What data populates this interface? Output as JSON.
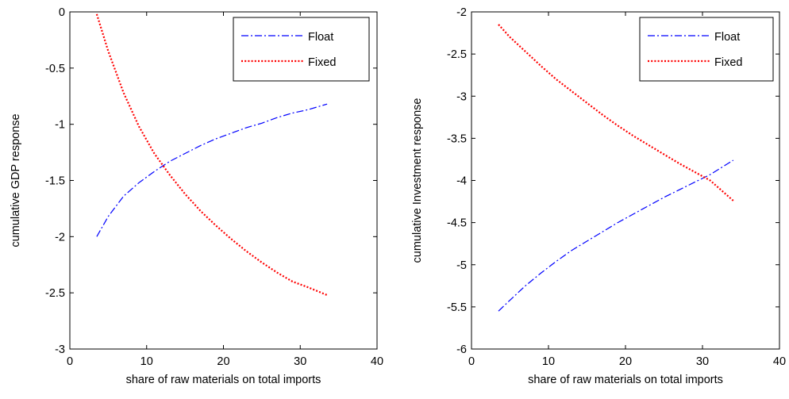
{
  "chart_data": [
    {
      "type": "line",
      "title": "",
      "xlabel": "share of raw materials on total imports",
      "ylabel": "cumulative GDP response",
      "xlim": [
        0,
        40
      ],
      "ylim": [
        -3,
        0
      ],
      "xticks": [
        0,
        10,
        20,
        30,
        40
      ],
      "yticks": [
        0,
        -0.5,
        -1,
        -1.5,
        -2,
        -2.5,
        -3
      ],
      "xtick_labels": [
        "0",
        "10",
        "20",
        "30",
        "40"
      ],
      "ytick_labels": [
        "0",
        "-0.5",
        "-1",
        "-1.5",
        "-2",
        "-2.5",
        "-3"
      ],
      "grid": false,
      "legend_position": "top-right",
      "series": [
        {
          "name": "Float",
          "color": "#0000ff",
          "style": "dashdot",
          "x": [
            3.5,
            5,
            7,
            9,
            11,
            13,
            15,
            17,
            19,
            21,
            23,
            25,
            27,
            29,
            31,
            33.5
          ],
          "y": [
            -2.0,
            -1.82,
            -1.64,
            -1.52,
            -1.42,
            -1.33,
            -1.26,
            -1.19,
            -1.13,
            -1.08,
            -1.03,
            -0.99,
            -0.94,
            -0.9,
            -0.87,
            -0.82
          ]
        },
        {
          "name": "Fixed",
          "color": "#ff0000",
          "style": "dotted",
          "x": [
            3.5,
            5,
            7,
            9,
            11,
            13,
            15,
            17,
            19,
            21,
            23,
            25,
            27,
            29,
            31,
            33.5
          ],
          "y": [
            -0.02,
            -0.35,
            -0.72,
            -1.02,
            -1.26,
            -1.45,
            -1.62,
            -1.77,
            -1.9,
            -2.02,
            -2.13,
            -2.23,
            -2.32,
            -2.4,
            -2.45,
            -2.52
          ]
        }
      ]
    },
    {
      "type": "line",
      "title": "",
      "xlabel": "share of raw materials on total imports",
      "ylabel": "cumulative Investment response",
      "xlim": [
        0,
        40
      ],
      "ylim": [
        -6,
        -2
      ],
      "xticks": [
        0,
        10,
        20,
        30,
        40
      ],
      "yticks": [
        -2,
        -2.5,
        -3,
        -3.5,
        -4,
        -4.5,
        -5,
        -5.5,
        -6
      ],
      "xtick_labels": [
        "0",
        "10",
        "20",
        "30",
        "40"
      ],
      "ytick_labels": [
        "-2",
        "-2.5",
        "-3",
        "-3.5",
        "-4",
        "-4.5",
        "-5",
        "-5.5",
        "-6"
      ],
      "grid": false,
      "legend_position": "top-right",
      "series": [
        {
          "name": "Float",
          "color": "#0000ff",
          "style": "dashdot",
          "x": [
            3.5,
            5,
            7,
            9,
            11,
            13,
            15,
            17,
            19,
            21,
            23,
            25,
            27,
            29,
            31,
            34
          ],
          "y": [
            -5.55,
            -5.42,
            -5.25,
            -5.1,
            -4.96,
            -4.83,
            -4.72,
            -4.61,
            -4.5,
            -4.4,
            -4.3,
            -4.2,
            -4.11,
            -4.02,
            -3.93,
            -3.76
          ]
        },
        {
          "name": "Fixed",
          "color": "#ff0000",
          "style": "dotted",
          "x": [
            3.5,
            5,
            7,
            9,
            11,
            13,
            15,
            17,
            19,
            21,
            23,
            25,
            27,
            29,
            31,
            34
          ],
          "y": [
            -2.15,
            -2.3,
            -2.47,
            -2.64,
            -2.8,
            -2.94,
            -3.08,
            -3.22,
            -3.35,
            -3.47,
            -3.58,
            -3.69,
            -3.8,
            -3.9,
            -4.0,
            -4.24
          ]
        }
      ]
    }
  ]
}
